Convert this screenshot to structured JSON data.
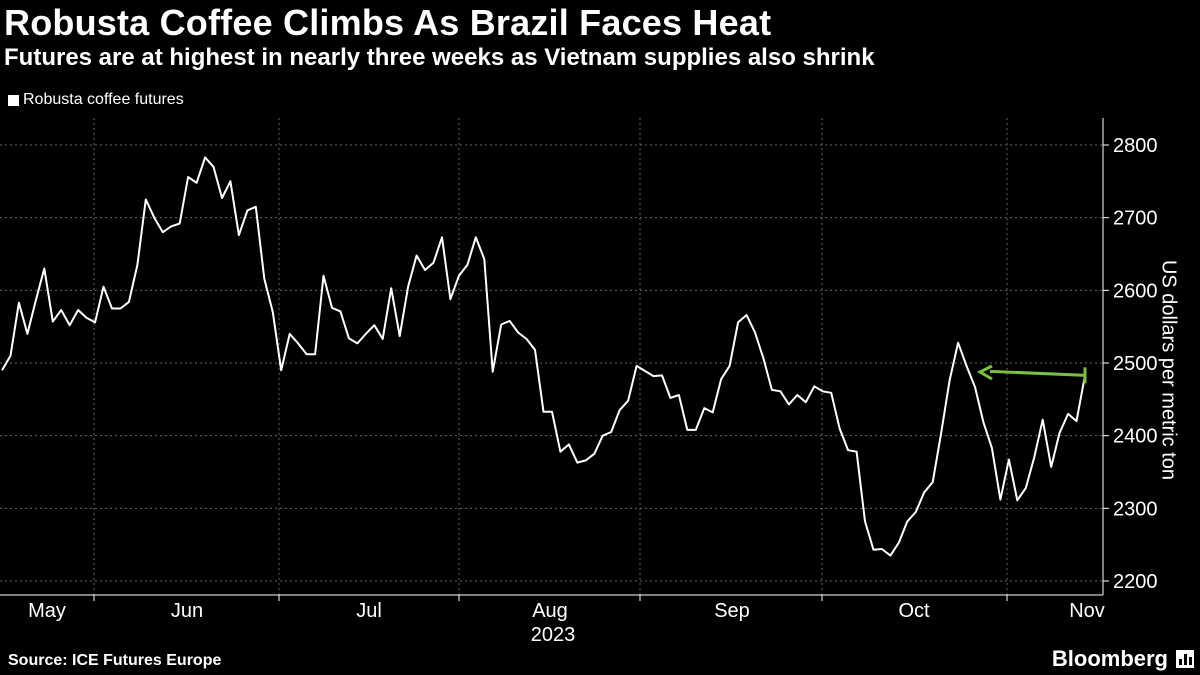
{
  "header": {
    "title": "Robusta Coffee Climbs As Brazil Faces Heat",
    "subtitle": "Futures are at highest in nearly three weeks as Vietnam supplies also shrink"
  },
  "legend": {
    "label": "Robusta coffee futures"
  },
  "footer": {
    "source": "Source: ICE Futures Europe",
    "brand": "Bloomberg"
  },
  "colors": {
    "background": "#000000",
    "line": "#ffffff",
    "arrow": "#7ac142",
    "grid": "#666666"
  },
  "chart_data": {
    "type": "line",
    "title": "Robusta Coffee Climbs As Brazil Faces Heat",
    "subtitle": "Futures are at highest in nearly three weeks as Vietnam supplies also shrink",
    "xlabel": "2023",
    "ylabel": "US dollars per metric ton",
    "ylim": [
      2190,
      2830
    ],
    "yticks": [
      2200,
      2300,
      2400,
      2500,
      2600,
      2700,
      2800
    ],
    "xticks": [
      "May",
      "Jun",
      "Jul",
      "Aug",
      "Sep",
      "Oct",
      "Nov"
    ],
    "grid": true,
    "legend_position": "top-left",
    "annotation": {
      "type": "arrow",
      "description": "points back from latest value to early-October peak",
      "value": 2483
    },
    "series": [
      {
        "name": "Robusta coffee futures",
        "values": [
          2490,
          2510,
          2583,
          2540,
          2586,
          2630,
          2557,
          2573,
          2552,
          2573,
          2562,
          2556,
          2605,
          2575,
          2575,
          2584,
          2635,
          2725,
          2700,
          2680,
          2688,
          2692,
          2756,
          2748,
          2783,
          2770,
          2727,
          2750,
          2676,
          2710,
          2715,
          2616,
          2570,
          2490,
          2540,
          2527,
          2512,
          2512,
          2620,
          2576,
          2571,
          2534,
          2527,
          2540,
          2552,
          2533,
          2603,
          2537,
          2605,
          2648,
          2628,
          2638,
          2673,
          2588,
          2620,
          2635,
          2673,
          2643,
          2488,
          2553,
          2558,
          2542,
          2533,
          2518,
          2433,
          2433,
          2378,
          2388,
          2363,
          2366,
          2375,
          2400,
          2405,
          2435,
          2448,
          2496,
          2489,
          2482,
          2483,
          2452,
          2456,
          2408,
          2408,
          2438,
          2432,
          2478,
          2496,
          2556,
          2566,
          2542,
          2506,
          2463,
          2461,
          2443,
          2456,
          2446,
          2468,
          2461,
          2459,
          2410,
          2380,
          2378,
          2282,
          2243,
          2244,
          2235,
          2253,
          2282,
          2295,
          2322,
          2336,
          2404,
          2476,
          2528,
          2496,
          2467,
          2418,
          2383,
          2312,
          2367,
          2311,
          2328,
          2370,
          2422,
          2357,
          2404,
          2430,
          2420,
          2483
        ]
      }
    ]
  }
}
